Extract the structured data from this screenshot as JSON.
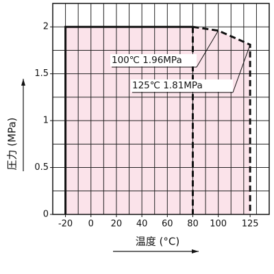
{
  "chart_data": {
    "type": "line",
    "xlabel": "温度 (°C)",
    "ylabel": "圧力 (MPa)",
    "xlim": [
      -30,
      140
    ],
    "ylim": [
      0,
      2.25
    ],
    "xticks": [
      -20,
      0,
      20,
      40,
      60,
      80,
      100,
      125
    ],
    "yticks": [
      0,
      0.5,
      1,
      1.5,
      2
    ],
    "xgrid": [
      -30,
      -20,
      -10,
      0,
      10,
      20,
      30,
      40,
      50,
      60,
      70,
      80,
      90,
      100,
      110,
      120,
      130,
      140
    ],
    "ygrid": [
      0,
      0.25,
      0.5,
      0.75,
      1,
      1.25,
      1.5,
      1.75,
      2,
      2.25
    ],
    "fill_color": "#fbe3ea",
    "series": [
      {
        "color": "#111111",
        "dashed": false,
        "x": [
          -20,
          -20,
          80
        ],
        "values": [
          0,
          2,
          2
        ]
      },
      {
        "color": "#111111",
        "dashed": true,
        "x": [
          80,
          100,
          125,
          125
        ],
        "values": [
          2,
          1.96,
          1.81,
          0
        ]
      },
      {
        "color": "#111111",
        "dashed": true,
        "x": [
          80,
          80
        ],
        "values": [
          2,
          0
        ]
      }
    ],
    "annotations": [
      {
        "text": "100℃ 1.96MPa",
        "x": 100,
        "y": 1.96
      },
      {
        "text": "125℃ 1.81MPa",
        "x": 125,
        "y": 1.81
      }
    ]
  }
}
